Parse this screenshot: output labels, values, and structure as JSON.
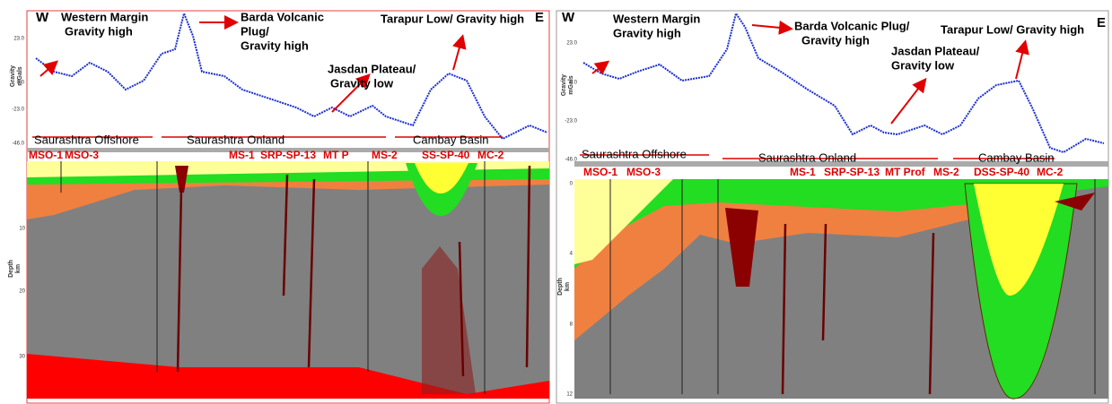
{
  "panels": [
    {
      "west": "W",
      "east": "E",
      "annotations": [
        "Western Margin",
        "Gravity high",
        "Barda Volcanic",
        "Plug/",
        "Gravity high",
        "Jasdan Plateau/",
        "Gravity low",
        "Tarapur Low/ Gravity high"
      ],
      "gravity_axis": {
        "title": "Gravity",
        "unit": "mGals",
        "ticks": [
          "23.0",
          "0.0",
          "-23.0",
          "-46.0"
        ]
      },
      "regions": [
        "Saurashtra Offshore",
        "Saurashtra Onland",
        "Cambay Basin"
      ],
      "wells": [
        "MSO-1",
        "MSO-3",
        "MS-1",
        "SRP-SP-13",
        "MT P",
        "MS-2",
        "SS-SP-40",
        "MC-2"
      ],
      "depth_axis": {
        "title": "Depth",
        "unit": "km",
        "ticks": [
          "10",
          "20",
          "30"
        ]
      }
    },
    {
      "west": "W",
      "east": "E",
      "annotations": [
        "Western Margin",
        "Gravity high",
        "Barda Volcanic Plug/",
        "Gravity high",
        "Jasdan Plateau/",
        "Gravity low",
        "Tarapur Low/ Gravity high"
      ],
      "gravity_axis": {
        "title": "Gravity",
        "unit": "mGals",
        "ticks": [
          "23.0",
          "0.0",
          "-23.0",
          "-46.0"
        ]
      },
      "regions": [
        "Saurashtra Offshore",
        "Saurashtra Onland",
        "Cambay Basin"
      ],
      "wells": [
        "MSO-1",
        "MSO-3",
        "MS-1",
        "SRP-SP-13",
        "MT Prof",
        "MS-2",
        "DSS-SP-40",
        "MC-2"
      ],
      "depth_axis": {
        "title": "Depth",
        "unit": "km",
        "ticks": [
          "0",
          "4",
          "8",
          "12"
        ]
      }
    }
  ]
}
